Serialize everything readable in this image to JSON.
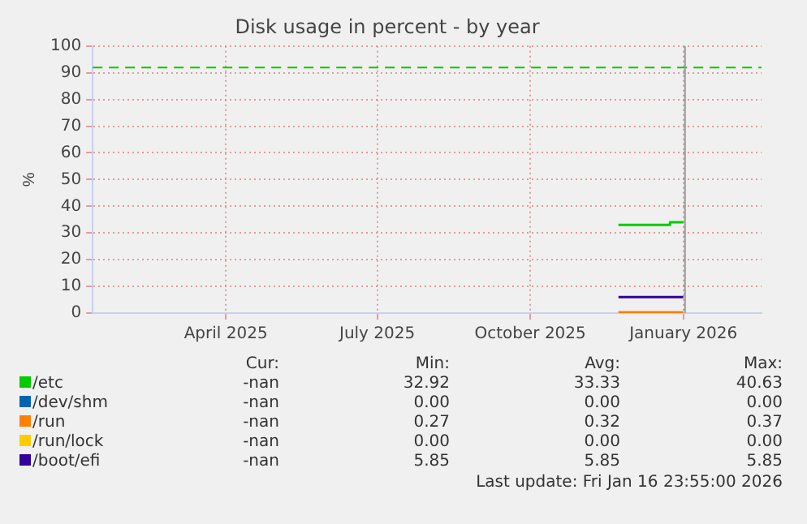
{
  "chart_data": {
    "type": "line",
    "title": "Disk usage in percent - by year",
    "ylabel": "%",
    "xlim": [
      "2025-01-25",
      "2026-03-03"
    ],
    "xticks": [
      {
        "value": "2025-04-15",
        "label": "April 2025"
      },
      {
        "value": "2025-07-15",
        "label": "July 2025"
      },
      {
        "value": "2025-10-15",
        "label": "October 2025"
      },
      {
        "value": "2026-01-15",
        "label": "January 2026"
      }
    ],
    "ylim": [
      0,
      100
    ],
    "yticks": [
      0,
      10,
      20,
      30,
      40,
      50,
      60,
      70,
      80,
      90,
      100
    ],
    "grid": true,
    "legend": "bottom",
    "marker": "none",
    "line_style": "solid",
    "series": [
      {
        "name": "/etc",
        "color": "#00cc00",
        "x": [
          "2025-12-07",
          "2026-01-07",
          "2026-01-07",
          "2026-01-15"
        ],
        "values": [
          33,
          33,
          34,
          34
        ]
      },
      {
        "name": "/dev/shm",
        "color": "#0066b3"
      },
      {
        "name": "/run",
        "color": "#ff8000",
        "x": [
          "2025-12-07",
          "2026-01-15"
        ],
        "values": [
          0.3,
          0.3
        ]
      },
      {
        "name": "/run/lock",
        "color": "#ffcc00"
      },
      {
        "name": "/boot/efi",
        "color": "#330099",
        "x": [
          "2025-12-07",
          "2026-01-15"
        ],
        "values": [
          6,
          6
        ]
      }
    ],
    "ref_lines": [
      {
        "axis": "y",
        "value": 92,
        "color": "#00cc00",
        "line_style": "dashed"
      },
      {
        "axis": "x",
        "value": "2026-01-16",
        "color": "#999999",
        "line_style": "solid"
      }
    ],
    "annotations": [
      "Cur:",
      "Min:",
      "Avg:",
      "Max:",
      "-nan",
      "32.92",
      "33.33",
      "40.63",
      "-nan",
      "0.00",
      "0.00",
      "0.00",
      "-nan",
      "0.27",
      "0.32",
      "0.37",
      "-nan",
      "0.00",
      "0.00",
      "0.00",
      "-nan",
      "5.85",
      "5.85",
      "5.85",
      "Last update: Fri Jan 16 23:55:00 2026"
    ]
  }
}
